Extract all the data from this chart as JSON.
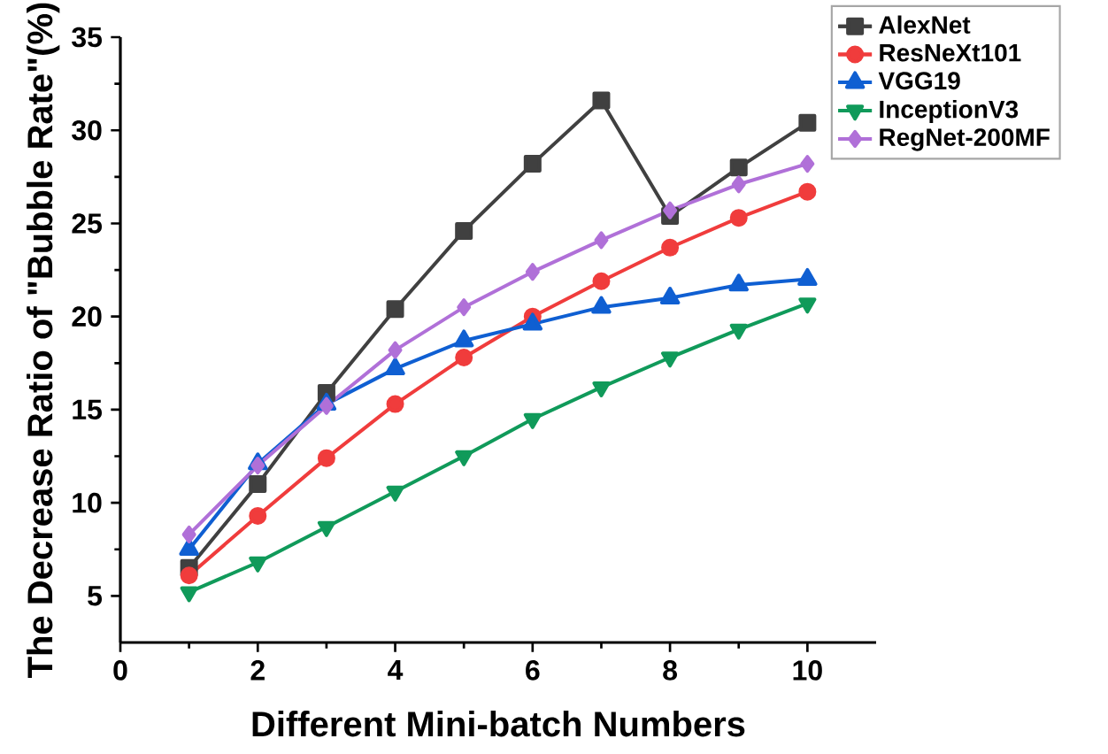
{
  "chart_data": {
    "type": "line",
    "xlabel": "Different Mini-batch Numbers",
    "ylabel": "The Decrease Ratio of \"Bubble Rate\"(%)",
    "x": [
      1,
      2,
      3,
      4,
      5,
      6,
      7,
      8,
      9,
      10
    ],
    "xlim": [
      0,
      11
    ],
    "xticks": [
      0,
      2,
      4,
      6,
      8,
      10
    ],
    "ylim": [
      2.5,
      35
    ],
    "yticks": [
      5,
      10,
      15,
      20,
      25,
      30,
      35
    ],
    "grid": false,
    "legend": "top right",
    "line_style": "solid",
    "series": [
      {
        "name": "AlexNet",
        "color": "#404040",
        "marker": "square",
        "values": [
          6.5,
          11.0,
          15.9,
          20.4,
          24.6,
          28.2,
          31.6,
          25.4,
          28.0,
          30.4
        ]
      },
      {
        "name": "ResNeXt101",
        "color": "#f03c3c",
        "marker": "circle",
        "values": [
          6.1,
          9.3,
          12.4,
          15.3,
          17.8,
          20.0,
          21.9,
          23.7,
          25.3,
          26.7
        ]
      },
      {
        "name": "VGG19",
        "color": "#0f5fd2",
        "marker": "triangle",
        "values": [
          7.5,
          12.1,
          15.3,
          17.2,
          18.7,
          19.6,
          20.5,
          21.0,
          21.7,
          22.0
        ]
      },
      {
        "name": "InceptionV3",
        "color": "#109a5a",
        "marker": "triangle-down",
        "values": [
          5.2,
          6.8,
          8.7,
          10.6,
          12.5,
          14.5,
          16.2,
          17.8,
          19.3,
          20.7
        ]
      },
      {
        "name": "RegNet-200MF",
        "color": "#b070d8",
        "marker": "diamond",
        "values": [
          8.3,
          12.0,
          15.2,
          18.2,
          20.5,
          22.4,
          24.1,
          25.7,
          27.1,
          28.2
        ]
      }
    ]
  }
}
